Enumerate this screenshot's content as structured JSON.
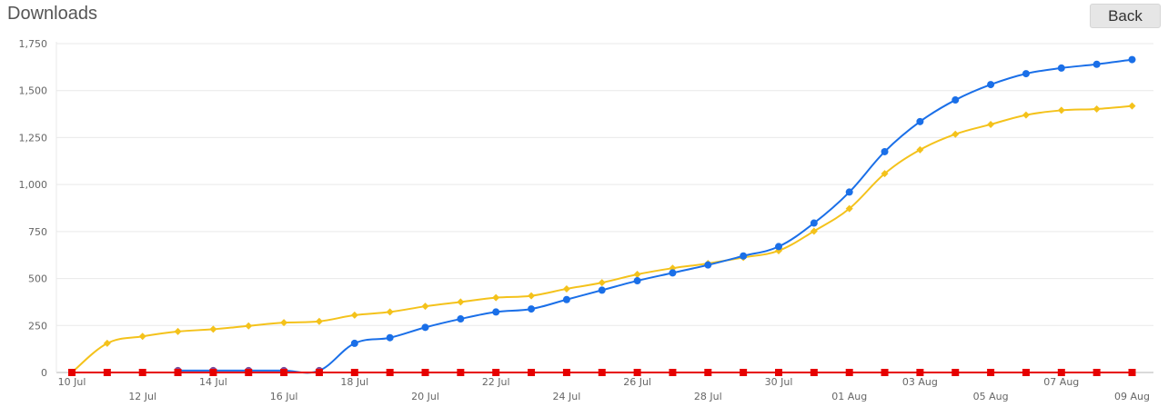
{
  "page": {
    "title": "Downloads",
    "back_label": "Back"
  },
  "colors": {
    "blue": "#1a6fe8",
    "yellow": "#f4c21b",
    "red": "#e60000",
    "purple": "#7b4d9e",
    "grid": "#e9e9e9",
    "axis": "#b5b5b5"
  },
  "chart_data": {
    "type": "line",
    "title": "Downloads",
    "ylim": [
      0,
      1750
    ],
    "yticks": [
      0,
      250,
      500,
      750,
      1000,
      1250,
      1500,
      1750
    ],
    "ytick_labels": [
      "0",
      "250",
      "500",
      "750",
      "1,000",
      "1,250",
      "1,500",
      "1,750"
    ],
    "x": [
      "10 Jul",
      "11 Jul",
      "12 Jul",
      "13 Jul",
      "14 Jul",
      "15 Jul",
      "16 Jul",
      "17 Jul",
      "18 Jul",
      "19 Jul",
      "20 Jul",
      "21 Jul",
      "22 Jul",
      "23 Jul",
      "24 Jul",
      "25 Jul",
      "26 Jul",
      "27 Jul",
      "28 Jul",
      "29 Jul",
      "30 Jul",
      "31 Jul",
      "01 Aug",
      "02 Aug",
      "03 Aug",
      "04 Aug",
      "05 Aug",
      "06 Aug",
      "07 Aug",
      "08 Aug",
      "09 Aug"
    ],
    "x_tick_labels": [
      "10 Jul",
      "12 Jul",
      "14 Jul",
      "16 Jul",
      "18 Jul",
      "20 Jul",
      "22 Jul",
      "24 Jul",
      "26 Jul",
      "28 Jul",
      "30 Jul",
      "01 Aug",
      "03 Aug",
      "05 Aug",
      "07 Aug",
      "09 Aug"
    ],
    "grid": true,
    "series": [
      {
        "color": "#1a6fe8",
        "marker": "circle",
        "values": [
          null,
          null,
          null,
          10,
          10,
          10,
          10,
          10,
          155,
          185,
          240,
          285,
          322,
          338,
          388,
          438,
          488,
          530,
          572,
          620,
          670,
          795,
          960,
          1175,
          1335,
          1450,
          1532,
          1590,
          1620,
          1640,
          1665
        ]
      },
      {
        "color": "#f4c21b",
        "marker": "diamond",
        "values": [
          0,
          155,
          192,
          218,
          230,
          248,
          265,
          272,
          305,
          322,
          352,
          375,
          398,
          408,
          445,
          478,
          522,
          555,
          580,
          612,
          648,
          752,
          872,
          1058,
          1185,
          1268,
          1320,
          1370,
          1395,
          1402,
          1418
        ]
      },
      {
        "color": "#e60000",
        "marker": "square",
        "values": [
          0,
          0,
          0,
          0,
          0,
          0,
          0,
          0,
          0,
          0,
          0,
          0,
          0,
          0,
          0,
          0,
          0,
          0,
          0,
          0,
          0,
          0,
          0,
          0,
          0,
          0,
          0,
          0,
          0,
          0,
          0
        ]
      }
    ]
  }
}
